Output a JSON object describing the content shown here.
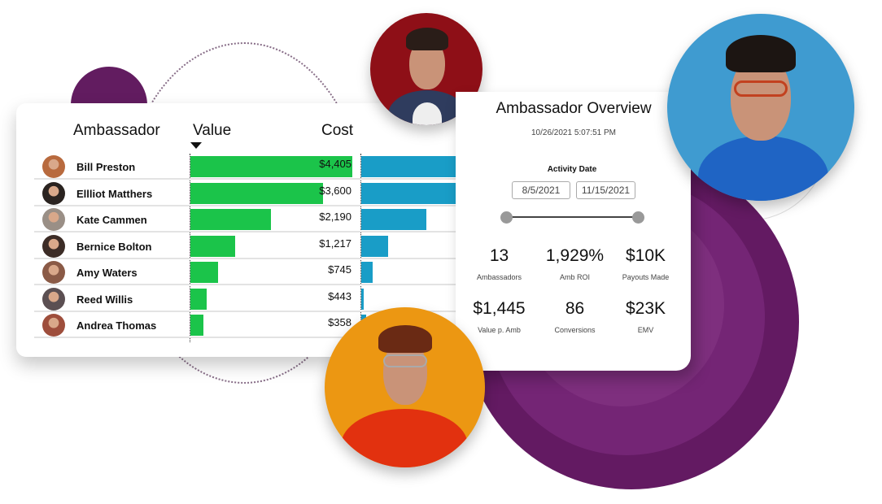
{
  "table": {
    "headers": {
      "ambassador": "Ambassador",
      "value": "Value",
      "cost": "Cost"
    },
    "max_value": 4405,
    "rows": [
      {
        "name": "Bill Preston",
        "value": "$4,405",
        "value_num": 4405,
        "cost_pct": 100,
        "avatar_color": "#b86a3e"
      },
      {
        "name": "Ellliot Matthers",
        "value": "$3,600",
        "value_num": 3600,
        "cost_pct": 100,
        "avatar_color": "#2a2320"
      },
      {
        "name": "Kate Cammen",
        "value": "$2,190",
        "value_num": 2190,
        "cost_pct": 58,
        "avatar_color": "#9a8f86"
      },
      {
        "name": "Bernice Bolton",
        "value": "$1,217",
        "value_num": 1217,
        "cost_pct": 24,
        "avatar_color": "#3c2c26"
      },
      {
        "name": "Amy Waters",
        "value": "$745",
        "value_num": 745,
        "cost_pct": 10,
        "avatar_color": "#8a5a46"
      },
      {
        "name": "Reed Willis",
        "value": "$443",
        "value_num": 443,
        "cost_pct": 2,
        "avatar_color": "#5b4f52"
      },
      {
        "name": "Andrea Thomas",
        "value": "$358",
        "value_num": 358,
        "cost_pct": 4,
        "avatar_color": "#9e4e3c"
      }
    ]
  },
  "overview": {
    "title": "Ambassador Overview",
    "timestamp": "10/26/2021  5:07:51 PM",
    "filter_label": "Activity Date",
    "date_start": "8/5/2021",
    "date_end": "11/15/2021",
    "kpis": [
      {
        "value": "13",
        "label": "Ambassadors"
      },
      {
        "value": "1,929%",
        "label": "Amb ROI"
      },
      {
        "value": "$10K",
        "label": "Payouts Made"
      },
      {
        "value": "$1,445",
        "label": "Value p. Amb"
      },
      {
        "value": "86",
        "label": "Conversions"
      },
      {
        "value": "$23K",
        "label": "EMV"
      }
    ]
  },
  "colors": {
    "value_bar": "#1bc44a",
    "cost_bar": "#199dc7",
    "purple": "#631a62"
  }
}
